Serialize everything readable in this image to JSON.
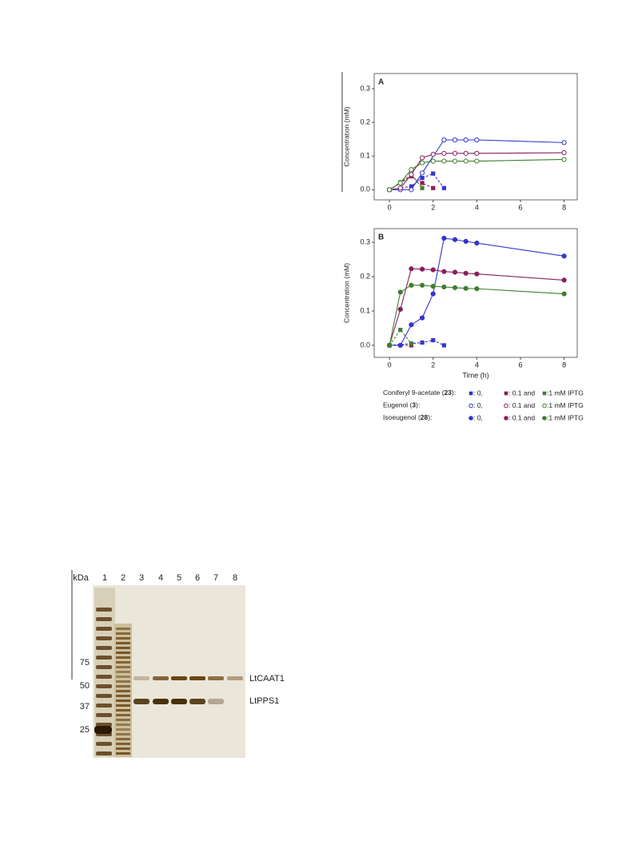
{
  "chart_data": [
    {
      "type": "line",
      "panel": "A",
      "ylabel": "Concentration (mM)",
      "xlim": [
        -0.7,
        8.6
      ],
      "xticks": [
        0,
        2,
        4,
        6,
        8
      ],
      "ylim": [
        -0.03,
        0.345
      ],
      "yticks": [
        {
          "value": 0,
          "label": "0.0"
        },
        0.1,
        0.2,
        0.3
      ],
      "series": [
        {
          "color": "#3535d0",
          "marker": "square",
          "dashed": true,
          "x": [
            0,
            1,
            1.5,
            2,
            2.5
          ],
          "values": [
            0,
            0.01,
            0.035,
            0.048,
            0.005
          ]
        },
        {
          "color": "#8a1f5e",
          "marker": "square",
          "dashed": true,
          "x": [
            0,
            1,
            1.5,
            2
          ],
          "values": [
            0,
            0.04,
            0.02,
            0.005
          ]
        },
        {
          "color": "#3f7f2f",
          "marker": "square",
          "dashed": true,
          "x": [
            0,
            0.5,
            1,
            1.5
          ],
          "values": [
            0,
            0.022,
            0.045,
            0.005
          ]
        },
        {
          "color": "#3535d0",
          "marker": "open",
          "dashed": false,
          "x": [
            0,
            0.5,
            1,
            1.5,
            2.5,
            3,
            3.5,
            4,
            8
          ],
          "values": [
            0,
            0,
            0,
            0.05,
            0.148,
            0.148,
            0.148,
            0.148,
            0.14
          ]
        },
        {
          "color": "#8a1f5e",
          "marker": "open",
          "dashed": false,
          "x": [
            0,
            0.5,
            1,
            1.5,
            2,
            2.5,
            3,
            3.5,
            4,
            8
          ],
          "values": [
            0,
            0.005,
            0.045,
            0.095,
            0.105,
            0.108,
            0.108,
            0.108,
            0.108,
            0.11
          ]
        },
        {
          "color": "#3f7f2f",
          "marker": "open",
          "dashed": false,
          "x": [
            0,
            0.5,
            1,
            1.5,
            2,
            2.5,
            3,
            3.5,
            4,
            8
          ],
          "values": [
            0,
            0.02,
            0.06,
            0.08,
            0.085,
            0.085,
            0.085,
            0.085,
            0.085,
            0.09
          ]
        }
      ]
    },
    {
      "type": "line",
      "panel": "B",
      "ylabel": "Concentration (mM)",
      "xlabel": "Time (h)",
      "xlim": [
        -0.7,
        8.6
      ],
      "xticks": [
        0,
        2,
        4,
        6,
        8
      ],
      "ylim": [
        -0.035,
        0.34
      ],
      "yticks": [
        {
          "value": 0,
          "label": "0.0"
        },
        0.1,
        0.2,
        0.3
      ],
      "series": [
        {
          "color": "#3535d0",
          "marker": "square",
          "dashed": true,
          "x": [
            0,
            1,
            1.5,
            2,
            2.5
          ],
          "values": [
            0,
            0.005,
            0.008,
            0.015,
            0
          ]
        },
        {
          "color": "#8a1f5e",
          "marker": "square",
          "dashed": true,
          "x": [
            0,
            1
          ],
          "values": [
            0,
            0
          ]
        },
        {
          "color": "#3f7f2f",
          "marker": "square",
          "dashed": true,
          "x": [
            0,
            0.5,
            1
          ],
          "values": [
            0,
            0.045,
            0.005
          ]
        },
        {
          "color": "#3535d0",
          "marker": "filled",
          "dashed": false,
          "x": [
            0,
            0.5,
            1,
            1.5,
            2,
            2.5,
            3,
            3.5,
            4,
            8
          ],
          "values": [
            0,
            0,
            0.06,
            0.08,
            0.15,
            0.312,
            0.308,
            0.303,
            0.298,
            0.26
          ]
        },
        {
          "color": "#8a1f5e",
          "marker": "filled",
          "dashed": false,
          "x": [
            0,
            0.5,
            1,
            1.5,
            2,
            2.5,
            3,
            3.5,
            4,
            8
          ],
          "values": [
            0,
            0.105,
            0.223,
            0.222,
            0.22,
            0.215,
            0.213,
            0.21,
            0.208,
            0.19
          ]
        },
        {
          "color": "#3f7f2f",
          "marker": "filled",
          "dashed": false,
          "x": [
            0,
            0.5,
            1,
            1.5,
            2,
            2.5,
            3,
            3.5,
            4,
            8
          ],
          "values": [
            0,
            0.155,
            0.175,
            0.175,
            0.172,
            0.17,
            0.168,
            0.166,
            0.165,
            0.15
          ]
        }
      ]
    }
  ],
  "legend": {
    "colors": [
      "#3535d0",
      "#8a1f5e",
      "#3f7f2f"
    ],
    "rows": [
      {
        "parts": [
          "Coniferyl 9-acetate (",
          "23",
          "):"
        ],
        "marker": "square",
        "items": [
          ": 0,",
          ": 0.1 and",
          ":1 mM IPTG"
        ]
      },
      {
        "parts": [
          "Eugenol (",
          "3",
          "):"
        ],
        "marker": "open",
        "items": [
          ": 0,",
          ": 0.1 and",
          ":1 mM IPTG"
        ]
      },
      {
        "parts": [
          "Isoeugenol (",
          "28",
          "):"
        ],
        "marker": "filled",
        "items": [
          ": 0,",
          ": 0.1 and",
          ":1 mM IPTG"
        ]
      }
    ]
  },
  "gel": {
    "unit": "kDa",
    "lanes": [
      "1",
      "2",
      "3",
      "4",
      "5",
      "6",
      "7",
      "8"
    ],
    "markers": [
      "75",
      "50",
      "37",
      "25"
    ],
    "bands": [
      "LtCAAT1",
      "LtPPS1"
    ]
  }
}
